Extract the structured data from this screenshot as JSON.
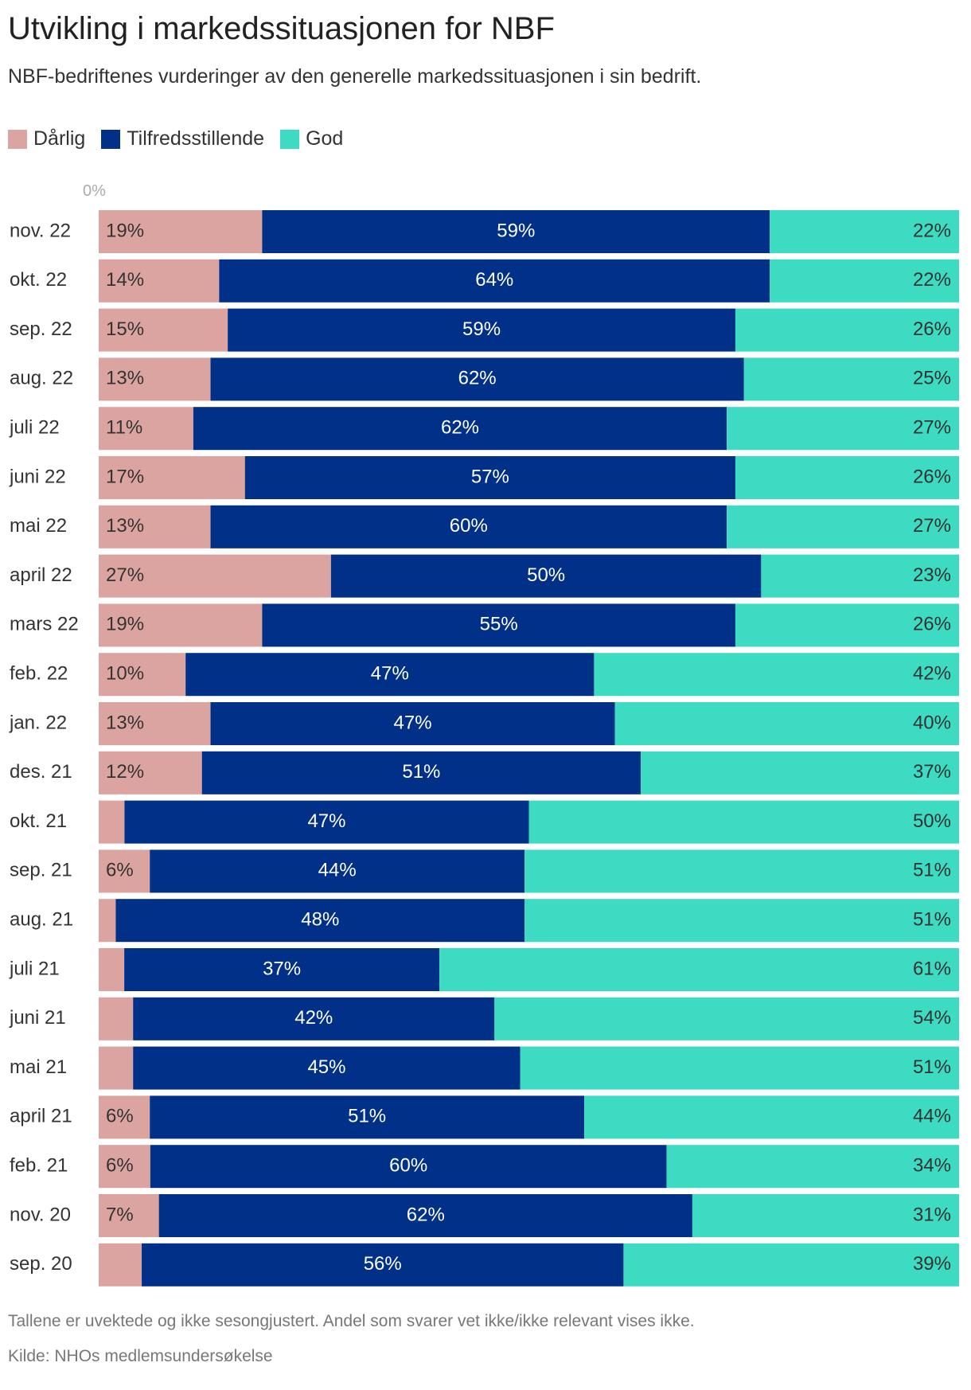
{
  "title": "Utvikling i markedssituasjonen for NBF",
  "subtitle": "NBF-bedriftenes vurderinger av den generelle markedssituasjonen i sin bedrift.",
  "legend": [
    {
      "name": "Dårlig",
      "color": "#dca4a0"
    },
    {
      "name": "Tilfredsstillende",
      "color": "#003087"
    },
    {
      "name": "God",
      "color": "#3ddbc1"
    }
  ],
  "footnote": "Tallene er uvektede og ikke sesongjustert. Andel som svarer vet ikke/ikke relevant vises ikke.",
  "source": "Kilde: NHOs medlemsundersøkelse",
  "chart_data": {
    "type": "bar",
    "orientation": "horizontal",
    "stacked": true,
    "axis_label": "0%",
    "xlim": [
      0,
      100
    ],
    "categories": [
      "nov. 22",
      "okt. 22",
      "sep. 22",
      "aug. 22",
      "juli 22",
      "juni 22",
      "mai 22",
      "april 22",
      "mars 22",
      "feb. 22",
      "jan. 22",
      "des. 21",
      "okt. 21",
      "sep. 21",
      "aug. 21",
      "juli 21",
      "juni 21",
      "mai 21",
      "april 21",
      "feb. 21",
      "nov. 20",
      "sep. 20"
    ],
    "series": [
      {
        "name": "Dårlig",
        "color": "#dca4a0",
        "text_color": "#333333",
        "values": [
          19,
          14,
          15,
          13,
          11,
          17,
          13,
          27,
          19,
          10,
          13,
          12,
          3,
          6,
          2,
          3,
          4,
          4,
          6,
          6,
          7,
          5
        ],
        "labels": [
          "19%",
          "14%",
          "15%",
          "13%",
          "11%",
          "17%",
          "13%",
          "27%",
          "19%",
          "10%",
          "13%",
          "12%",
          "",
          "6%",
          "",
          "",
          "",
          "",
          "6%",
          "6%",
          "7%",
          ""
        ]
      },
      {
        "name": "Tilfredsstillende",
        "color": "#003087",
        "text_color": "#ffffff",
        "values": [
          59,
          64,
          59,
          62,
          62,
          57,
          60,
          50,
          55,
          47,
          47,
          51,
          47,
          44,
          48,
          37,
          42,
          45,
          51,
          60,
          62,
          56
        ],
        "labels": [
          "59%",
          "64%",
          "59%",
          "62%",
          "62%",
          "57%",
          "60%",
          "50%",
          "55%",
          "47%",
          "47%",
          "51%",
          "47%",
          "44%",
          "48%",
          "37%",
          "42%",
          "45%",
          "51%",
          "60%",
          "62%",
          "56%"
        ]
      },
      {
        "name": "God",
        "color": "#3ddbc1",
        "text_color": "#333333",
        "values": [
          22,
          22,
          26,
          25,
          27,
          26,
          27,
          23,
          26,
          42,
          40,
          37,
          50,
          51,
          51,
          61,
          54,
          51,
          44,
          34,
          31,
          39
        ],
        "labels": [
          "22%",
          "22%",
          "26%",
          "25%",
          "27%",
          "26%",
          "27%",
          "23%",
          "26%",
          "42%",
          "40%",
          "37%",
          "50%",
          "51%",
          "51%",
          "61%",
          "54%",
          "51%",
          "44%",
          "34%",
          "31%",
          "39%"
        ]
      }
    ]
  }
}
